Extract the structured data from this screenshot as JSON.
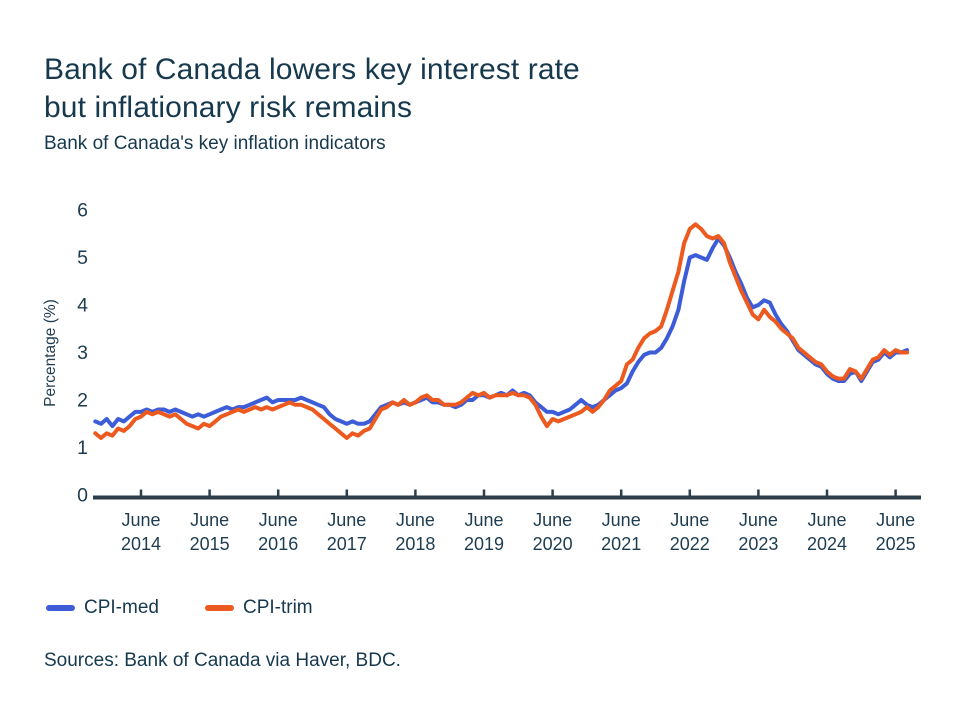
{
  "header": {
    "title": "Bank of Canada lowers key interest rate\nbut inflationary risk remains",
    "subtitle": "Bank of Canada's key inflation indicators"
  },
  "chart_data": {
    "type": "line",
    "title": "Bank of Canada's key inflation indicators",
    "ylabel": "Percentage (%)",
    "ylim": [
      0,
      6
    ],
    "yticks": [
      0,
      1,
      2,
      3,
      4,
      5,
      6
    ],
    "grid": false,
    "legend_position": "bottom-left",
    "x_unit": "month",
    "x_start": "2013-10",
    "x_end": "2025-08",
    "x_tick_month": "June",
    "x_tick_years": [
      "2014",
      "2015",
      "2016",
      "2017",
      "2018",
      "2019",
      "2020",
      "2021",
      "2022",
      "2023",
      "2024",
      "2025"
    ],
    "series": [
      {
        "name": "CPI-med",
        "color": "#3D5CD7",
        "values": [
          1.55,
          1.5,
          1.6,
          1.45,
          1.6,
          1.55,
          1.65,
          1.75,
          1.75,
          1.8,
          1.75,
          1.8,
          1.8,
          1.75,
          1.8,
          1.75,
          1.7,
          1.65,
          1.7,
          1.65,
          1.7,
          1.75,
          1.8,
          1.85,
          1.8,
          1.85,
          1.85,
          1.9,
          1.95,
          2.0,
          2.05,
          1.95,
          2.0,
          2.0,
          2.0,
          2.0,
          2.05,
          2.0,
          1.95,
          1.9,
          1.85,
          1.7,
          1.6,
          1.55,
          1.5,
          1.55,
          1.5,
          1.5,
          1.55,
          1.7,
          1.85,
          1.9,
          1.95,
          1.9,
          1.95,
          1.9,
          1.95,
          2.0,
          2.05,
          1.95,
          1.95,
          1.9,
          1.9,
          1.85,
          1.9,
          2.0,
          2.0,
          2.1,
          2.1,
          2.05,
          2.1,
          2.15,
          2.1,
          2.2,
          2.1,
          2.15,
          2.1,
          1.95,
          1.85,
          1.75,
          1.75,
          1.7,
          1.75,
          1.8,
          1.9,
          2.0,
          1.9,
          1.85,
          1.9,
          2.0,
          2.1,
          2.2,
          2.25,
          2.35,
          2.6,
          2.8,
          2.95,
          3.0,
          3.0,
          3.1,
          3.3,
          3.55,
          3.9,
          4.5,
          5.0,
          5.05,
          5.0,
          4.95,
          5.2,
          5.4,
          5.25,
          5.0,
          4.7,
          4.45,
          4.15,
          3.95,
          4.0,
          4.1,
          4.05,
          3.8,
          3.6,
          3.45,
          3.25,
          3.05,
          2.95,
          2.85,
          2.75,
          2.7,
          2.55,
          2.45,
          2.4,
          2.4,
          2.55,
          2.6,
          2.4,
          2.6,
          2.8,
          2.85,
          3.0,
          2.9,
          3.0,
          3.0,
          3.05
        ]
      },
      {
        "name": "CPI-trim",
        "color": "#ED5A1F",
        "values": [
          1.3,
          1.2,
          1.3,
          1.25,
          1.4,
          1.35,
          1.45,
          1.6,
          1.65,
          1.75,
          1.7,
          1.75,
          1.7,
          1.65,
          1.7,
          1.6,
          1.5,
          1.45,
          1.4,
          1.5,
          1.45,
          1.55,
          1.65,
          1.7,
          1.75,
          1.8,
          1.75,
          1.8,
          1.85,
          1.8,
          1.85,
          1.8,
          1.85,
          1.9,
          1.95,
          1.9,
          1.9,
          1.85,
          1.8,
          1.7,
          1.6,
          1.5,
          1.4,
          1.3,
          1.2,
          1.3,
          1.25,
          1.35,
          1.4,
          1.6,
          1.8,
          1.85,
          1.95,
          1.9,
          2.0,
          1.9,
          1.95,
          2.05,
          2.1,
          2.0,
          2.0,
          1.9,
          1.9,
          1.9,
          1.95,
          2.05,
          2.15,
          2.1,
          2.15,
          2.05,
          2.1,
          2.1,
          2.1,
          2.15,
          2.1,
          2.1,
          2.05,
          1.9,
          1.65,
          1.45,
          1.6,
          1.55,
          1.6,
          1.65,
          1.7,
          1.75,
          1.85,
          1.75,
          1.85,
          2.0,
          2.2,
          2.3,
          2.4,
          2.75,
          2.85,
          3.1,
          3.3,
          3.4,
          3.45,
          3.55,
          3.9,
          4.3,
          4.7,
          5.3,
          5.6,
          5.7,
          5.6,
          5.45,
          5.4,
          5.45,
          5.3,
          4.9,
          4.6,
          4.3,
          4.05,
          3.8,
          3.7,
          3.9,
          3.75,
          3.65,
          3.5,
          3.4,
          3.3,
          3.1,
          3.0,
          2.9,
          2.8,
          2.75,
          2.6,
          2.5,
          2.45,
          2.45,
          2.65,
          2.6,
          2.45,
          2.65,
          2.85,
          2.9,
          3.05,
          2.95,
          3.05,
          3.0,
          3.0
        ]
      }
    ]
  },
  "footer": {
    "sources": "Sources: Bank of Canada via Haver, BDC."
  }
}
